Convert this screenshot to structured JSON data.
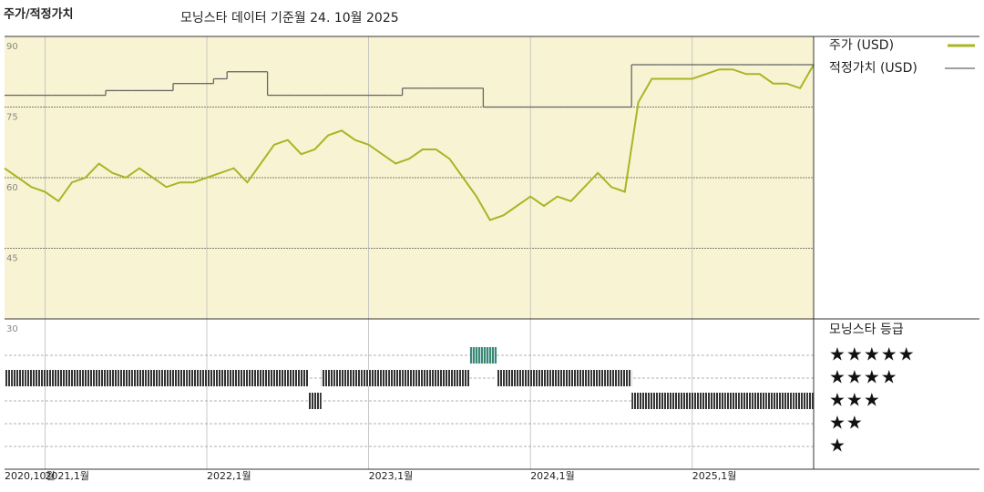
{
  "chart_data": {
    "type": "line",
    "header_label": "주가/적정가치",
    "title": "모닝스타 데이터 기준월 24. 10월 2025",
    "x": [
      "2020-10",
      "2020-11",
      "2020-12",
      "2021-01",
      "2021-02",
      "2021-03",
      "2021-04",
      "2021-05",
      "2021-06",
      "2021-07",
      "2021-08",
      "2021-09",
      "2021-10",
      "2021-11",
      "2021-12",
      "2022-01",
      "2022-02",
      "2022-03",
      "2022-04",
      "2022-05",
      "2022-06",
      "2022-07",
      "2022-08",
      "2022-09",
      "2022-10",
      "2022-11",
      "2022-12",
      "2023-01",
      "2023-02",
      "2023-03",
      "2023-04",
      "2023-05",
      "2023-06",
      "2023-07",
      "2023-08",
      "2023-09",
      "2023-10",
      "2023-11",
      "2023-12",
      "2024-01",
      "2024-02",
      "2024-03",
      "2024-04",
      "2024-05",
      "2024-06",
      "2024-07",
      "2024-08",
      "2024-09",
      "2024-10",
      "2024-11",
      "2024-12",
      "2025-01",
      "2025-02",
      "2025-03",
      "2025-04",
      "2025-05",
      "2025-06",
      "2025-07",
      "2025-08",
      "2025-09",
      "2025-10"
    ],
    "xlim": [
      "2020-10",
      "2025-10"
    ],
    "xticks": [
      {
        "value": "2020-10",
        "label": "2020,10월"
      },
      {
        "value": "2021-01",
        "label": "2021,1월"
      },
      {
        "value": "2022-01",
        "label": "2022,1월"
      },
      {
        "value": "2023-01",
        "label": "2023,1월"
      },
      {
        "value": "2024-01",
        "label": "2024,1월"
      },
      {
        "value": "2025-01",
        "label": "2025,1월"
      }
    ],
    "ylim": [
      30,
      90
    ],
    "yticks": [
      30,
      45,
      60,
      75,
      90
    ],
    "series": [
      {
        "name": "주가 (USD)",
        "color": "#a9b526",
        "values": [
          62,
          60,
          58,
          57,
          55,
          59,
          60,
          63,
          61,
          60,
          62,
          60,
          58,
          59,
          59,
          60,
          61,
          62,
          59,
          63,
          67,
          68,
          65,
          66,
          69,
          70,
          68,
          67,
          65,
          63,
          64,
          66,
          66,
          64,
          60,
          56,
          51,
          52,
          54,
          56,
          54,
          56,
          55,
          58,
          61,
          58,
          57,
          76,
          81,
          81,
          81,
          81,
          82,
          83,
          83,
          82,
          82,
          80,
          80,
          79,
          84
        ]
      },
      {
        "name": "적정가치 (USD)",
        "color": "#666666",
        "values": [
          77.5,
          77.5,
          77.5,
          77.5,
          77.5,
          77.5,
          77.5,
          77.5,
          78.5,
          78.5,
          78.5,
          78.5,
          78.5,
          80,
          80,
          80,
          81,
          82.5,
          82.5,
          82.5,
          77.5,
          77.5,
          77.5,
          77.5,
          77.5,
          77.5,
          77.5,
          77.5,
          77.5,
          77.5,
          79,
          79,
          79,
          79,
          79,
          79,
          75,
          75,
          75,
          75,
          75,
          75,
          75,
          75,
          75,
          75,
          75,
          84,
          84,
          84,
          84,
          84,
          84,
          84,
          84,
          84,
          84,
          84,
          84,
          84,
          84
        ]
      }
    ],
    "rating_title": "모닝스타 등급",
    "rating_levels": [
      5,
      4,
      3,
      2,
      1
    ],
    "rating_labels": [
      "★★★★★",
      "★★★★",
      "★★★",
      "★★",
      "★"
    ],
    "ratings": [
      4,
      4,
      4,
      4,
      4,
      4,
      4,
      4,
      4,
      4,
      4,
      4,
      4,
      4,
      4,
      4,
      4,
      4,
      4,
      4,
      4,
      4,
      4,
      3,
      4,
      4,
      4,
      4,
      4,
      4,
      4,
      4,
      4,
      4,
      4,
      5,
      5,
      4,
      4,
      4,
      4,
      4,
      4,
      4,
      4,
      4,
      4,
      3,
      3,
      3,
      3,
      3,
      3,
      3,
      3,
      3,
      3,
      3,
      3,
      3,
      3
    ],
    "rating_colors": {
      "5": "#3a8a6e",
      "default": "#333333"
    }
  }
}
